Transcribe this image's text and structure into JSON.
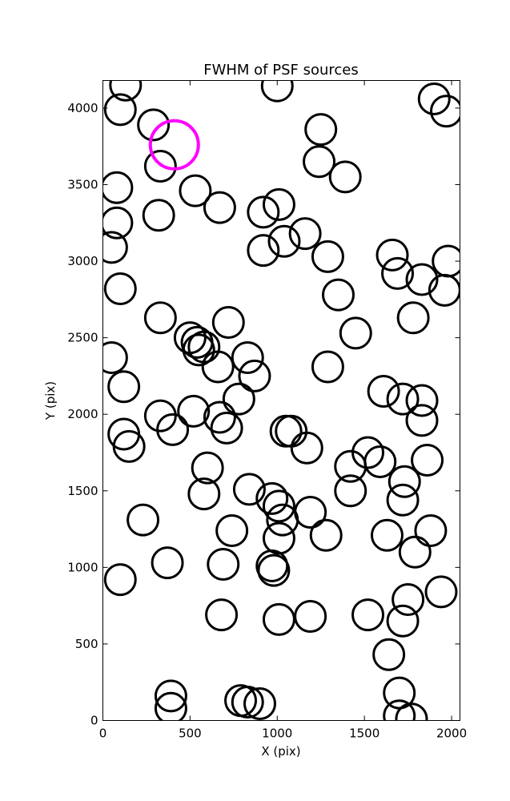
{
  "chart_data": {
    "type": "scatter",
    "title": "FWHM of PSF sources",
    "xlabel": "X (pix)",
    "ylabel": "Y (pix)",
    "xlim": [
      0,
      2048
    ],
    "ylim": [
      0,
      4180
    ],
    "xticks": [
      0,
      500,
      1000,
      1500,
      2000
    ],
    "yticks": [
      0,
      500,
      1000,
      1500,
      2000,
      2500,
      3000,
      3500,
      4000
    ],
    "grid": false,
    "legend": "none",
    "marker": "open-circle",
    "marker_color": "#000000",
    "highlight_color": "#ff00ff",
    "series": [
      {
        "points": [
          [
            130,
            4150
          ],
          [
            100,
            3990
          ],
          [
            290,
            3890
          ],
          [
            330,
            3620
          ],
          [
            1000,
            4145
          ],
          [
            1900,
            4060
          ],
          [
            1970,
            3980
          ],
          [
            80,
            3480
          ],
          [
            530,
            3460
          ],
          [
            670,
            3350
          ],
          [
            80,
            3250
          ],
          [
            320,
            3300
          ],
          [
            920,
            3320
          ],
          [
            1010,
            3370
          ],
          [
            1250,
            3860
          ],
          [
            1240,
            3650
          ],
          [
            1390,
            3550
          ],
          [
            1160,
            3180
          ],
          [
            1040,
            3130
          ],
          [
            920,
            3070
          ],
          [
            1290,
            3030
          ],
          [
            50,
            3090
          ],
          [
            1660,
            3040
          ],
          [
            1690,
            2920
          ],
          [
            1830,
            2880
          ],
          [
            1960,
            2810
          ],
          [
            1980,
            3000
          ],
          [
            100,
            2820
          ],
          [
            1350,
            2780
          ],
          [
            1780,
            2630
          ],
          [
            330,
            2630
          ],
          [
            720,
            2600
          ],
          [
            1450,
            2530
          ],
          [
            500,
            2500
          ],
          [
            540,
            2470
          ],
          [
            580,
            2440
          ],
          [
            550,
            2420
          ],
          [
            50,
            2370
          ],
          [
            660,
            2310
          ],
          [
            830,
            2370
          ],
          [
            870,
            2250
          ],
          [
            1290,
            2310
          ],
          [
            1610,
            2150
          ],
          [
            1720,
            2100
          ],
          [
            1830,
            2090
          ],
          [
            120,
            2180
          ],
          [
            780,
            2100
          ],
          [
            330,
            1990
          ],
          [
            400,
            1900
          ],
          [
            520,
            2020
          ],
          [
            670,
            1980
          ],
          [
            710,
            1910
          ],
          [
            1050,
            1890
          ],
          [
            1080,
            1890
          ],
          [
            1170,
            1780
          ],
          [
            1830,
            1960
          ],
          [
            120,
            1870
          ],
          [
            150,
            1790
          ],
          [
            1520,
            1750
          ],
          [
            1590,
            1690
          ],
          [
            1420,
            1660
          ],
          [
            1730,
            1560
          ],
          [
            1860,
            1700
          ],
          [
            600,
            1650
          ],
          [
            580,
            1480
          ],
          [
            840,
            1510
          ],
          [
            970,
            1450
          ],
          [
            1010,
            1400
          ],
          [
            1030,
            1310
          ],
          [
            1190,
            1360
          ],
          [
            1420,
            1500
          ],
          [
            1720,
            1440
          ],
          [
            230,
            1310
          ],
          [
            740,
            1240
          ],
          [
            1010,
            1190
          ],
          [
            1280,
            1210
          ],
          [
            1630,
            1210
          ],
          [
            1790,
            1100
          ],
          [
            1880,
            1240
          ],
          [
            370,
            1030
          ],
          [
            690,
            1020
          ],
          [
            970,
            1010
          ],
          [
            980,
            980
          ],
          [
            100,
            920
          ],
          [
            680,
            690
          ],
          [
            1010,
            660
          ],
          [
            1190,
            680
          ],
          [
            1520,
            690
          ],
          [
            1720,
            650
          ],
          [
            1750,
            790
          ],
          [
            1940,
            840
          ],
          [
            1640,
            430
          ],
          [
            390,
            160
          ],
          [
            390,
            80
          ],
          [
            790,
            130
          ],
          [
            830,
            120
          ],
          [
            900,
            110
          ],
          [
            1700,
            180
          ],
          [
            1700,
            30
          ],
          [
            1770,
            10
          ]
        ]
      }
    ],
    "highlight_points": [
      [
        410,
        3760
      ]
    ]
  }
}
